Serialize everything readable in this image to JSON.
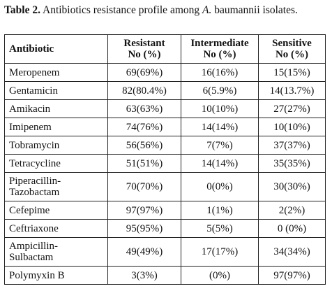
{
  "caption": {
    "label": "Table 2.",
    "text_before_italic": " Antibiotics resistance profile among ",
    "italic": "A.",
    "text_after_italic": " baumannii isolates."
  },
  "table": {
    "headers": [
      {
        "line1": "Antibiotic",
        "line2": ""
      },
      {
        "line1": "Resistant",
        "line2": "No (%)"
      },
      {
        "line1": "Intermediate",
        "line2": "No (%)"
      },
      {
        "line1": "Sensitive",
        "line2": "No (%)"
      }
    ],
    "rows": [
      {
        "antibiotic": "Meropenem",
        "resistant": "69(69%)",
        "intermediate": "16(16%)",
        "sensitive": "15(15%)"
      },
      {
        "antibiotic": "Gentamicin",
        "resistant": "82(80.4%)",
        "intermediate": "6(5.9%)",
        "sensitive": "14(13.7%)"
      },
      {
        "antibiotic": "Amikacin",
        "resistant": "63(63%)",
        "intermediate": "10(10%)",
        "sensitive": "27(27%)"
      },
      {
        "antibiotic": "Imipenem",
        "resistant": "74(76%)",
        "intermediate": "14(14%)",
        "sensitive": "10(10%)"
      },
      {
        "antibiotic": "Tobramycin",
        "resistant": "56(56%)",
        "intermediate": "7(7%)",
        "sensitive": "37(37%)"
      },
      {
        "antibiotic": "Tetracycline",
        "resistant": "51(51%)",
        "intermediate": "14(14%)",
        "sensitive": "35(35%)"
      },
      {
        "antibiotic_line1": "Piperacillin-",
        "antibiotic_line2": "Tazobactam",
        "resistant": "70(70%)",
        "intermediate": "0(0%)",
        "sensitive": "30(30%)"
      },
      {
        "antibiotic": "Cefepime",
        "resistant": "97(97%)",
        "intermediate": "1(1%)",
        "sensitive": "2(2%)"
      },
      {
        "antibiotic": "Ceftriaxone",
        "resistant": "95(95%)",
        "intermediate": "5(5%)",
        "sensitive": "0 (0%)"
      },
      {
        "antibiotic_line1": "Ampicillin-",
        "antibiotic_line2": "Sulbactam",
        "resistant": "49(49%)",
        "intermediate": "17(17%)",
        "sensitive": "34(34%)"
      },
      {
        "antibiotic": "Polymyxin B",
        "resistant": "3(3%)",
        "intermediate": "(0%)",
        "sensitive": "97(97%)"
      }
    ]
  }
}
